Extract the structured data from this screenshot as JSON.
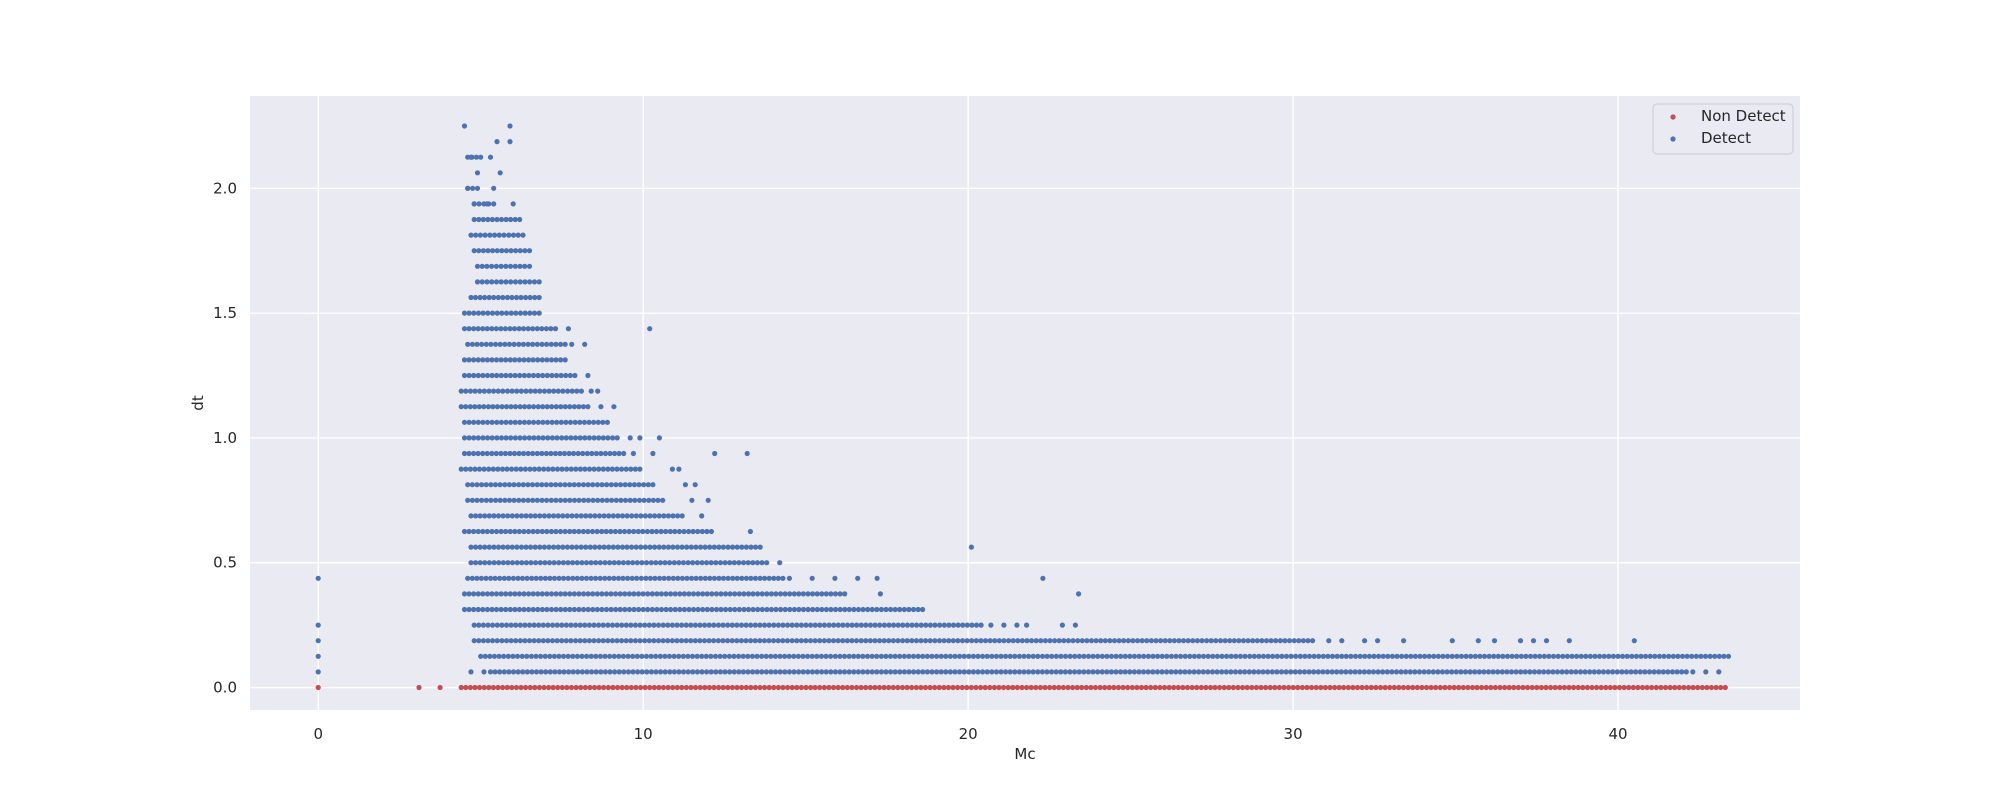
{
  "chart_data": {
    "type": "scatter",
    "title": "",
    "xlabel": "Mc",
    "ylabel": "dt",
    "xlim": [
      -2.1,
      45.6
    ],
    "ylim": [
      -0.09,
      2.37
    ],
    "x_ticks": [
      0,
      10,
      20,
      30,
      40
    ],
    "y_ticks": [
      0.0,
      0.5,
      1.0,
      1.5,
      2.0
    ],
    "x_tick_labels": [
      "0",
      "10",
      "20",
      "30",
      "40"
    ],
    "y_tick_labels": [
      "0.0",
      "0.5",
      "1.0",
      "1.5",
      "2.0"
    ],
    "grid": true,
    "legend_position": "top-right",
    "dt_step": 0.0625,
    "series": [
      {
        "name": "Non Detect",
        "color": "#c44e52",
        "points": [
          [
            0,
            0
          ],
          [
            3.1,
            0
          ],
          [
            3.75,
            0
          ]
        ],
        "bands": [
          {
            "y": 0,
            "x_from": 4.4,
            "x_to": 43.3
          }
        ]
      },
      {
        "name": "Detect",
        "color": "#4c72b0",
        "points": [
          [
            0,
            0.0625
          ],
          [
            0,
            0.125
          ],
          [
            0,
            0.1875
          ],
          [
            0,
            0.25
          ],
          [
            0,
            0.4375
          ],
          [
            10.2,
            1.4375
          ],
          [
            20.1,
            0.5625
          ],
          [
            22.3,
            0.4375
          ],
          [
            23.4,
            0.375
          ],
          [
            22.9,
            0.25
          ],
          [
            23.3,
            0.25
          ],
          [
            12.2,
            0.9375
          ],
          [
            13.2,
            0.9375
          ],
          [
            11.5,
            0.75
          ],
          [
            12.0,
            0.75
          ],
          [
            11.8,
            0.6875
          ],
          [
            13.3,
            0.625
          ],
          [
            10.5,
            1.0
          ],
          [
            9.9,
            1.0
          ],
          [
            9.6,
            1.0
          ],
          [
            9.7,
            0.9375
          ],
          [
            10.3,
            0.9375
          ],
          [
            10.9,
            0.875
          ],
          [
            11.1,
            0.875
          ],
          [
            11.3,
            0.8125
          ],
          [
            11.6,
            0.8125
          ],
          [
            14.2,
            0.5
          ],
          [
            14.5,
            0.4375
          ],
          [
            15.2,
            0.4375
          ],
          [
            15.9,
            0.4375
          ],
          [
            16.6,
            0.4375
          ],
          [
            17.2,
            0.4375
          ],
          [
            17.3,
            0.375
          ],
          [
            8.7,
            1.125
          ],
          [
            9.1,
            1.125
          ],
          [
            8.4,
            1.1875
          ],
          [
            8.6,
            1.1875
          ],
          [
            8.3,
            1.25
          ],
          [
            7.8,
            1.375
          ],
          [
            8.2,
            1.375
          ],
          [
            7.7,
            1.4375
          ],
          [
            4.5,
            2.25
          ],
          [
            5.9,
            2.25
          ],
          [
            5.5,
            2.1875
          ],
          [
            5.9,
            2.1875
          ],
          [
            4.7,
            2.125
          ],
          [
            5.3,
            2.125
          ],
          [
            4.9,
            2.0625
          ],
          [
            5.6,
            2.0625
          ],
          [
            4.6,
            2.0
          ],
          [
            5.4,
            2.0
          ],
          [
            4.8,
            1.9375
          ],
          [
            5.2,
            1.9375
          ],
          [
            6.0,
            1.9375
          ],
          [
            20.7,
            0.25
          ],
          [
            21.1,
            0.25
          ],
          [
            21.5,
            0.25
          ],
          [
            21.8,
            0.25
          ],
          [
            31.1,
            0.1875
          ],
          [
            31.5,
            0.1875
          ],
          [
            32.2,
            0.1875
          ],
          [
            32.6,
            0.1875
          ],
          [
            33.4,
            0.1875
          ],
          [
            34.9,
            0.1875
          ],
          [
            35.7,
            0.1875
          ],
          [
            36.2,
            0.1875
          ],
          [
            37.0,
            0.1875
          ],
          [
            37.4,
            0.1875
          ],
          [
            37.8,
            0.1875
          ],
          [
            38.5,
            0.1875
          ],
          [
            40.5,
            0.1875
          ],
          [
            42.3,
            0.0625
          ],
          [
            42.7,
            0.0625
          ],
          [
            43.1,
            0.0625
          ],
          [
            4.7,
            0.0625
          ],
          [
            5.1,
            0.0625
          ]
        ],
        "bands": [
          {
            "y": 2.125,
            "x_from": 4.6,
            "x_to": 5.0
          },
          {
            "y": 2.0,
            "x_from": 4.6,
            "x_to": 4.9
          },
          {
            "y": 1.9375,
            "x_from": 4.8,
            "x_to": 5.4
          },
          {
            "y": 1.875,
            "x_from": 4.8,
            "x_to": 6.2
          },
          {
            "y": 1.8125,
            "x_from": 4.7,
            "x_to": 6.3
          },
          {
            "y": 1.75,
            "x_from": 4.8,
            "x_to": 6.5
          },
          {
            "y": 1.6875,
            "x_from": 4.9,
            "x_to": 6.5
          },
          {
            "y": 1.625,
            "x_from": 4.9,
            "x_to": 6.8
          },
          {
            "y": 1.5625,
            "x_from": 4.7,
            "x_to": 6.8
          },
          {
            "y": 1.5,
            "x_from": 4.5,
            "x_to": 6.8
          },
          {
            "y": 1.4375,
            "x_from": 4.5,
            "x_to": 7.3
          },
          {
            "y": 1.375,
            "x_from": 4.6,
            "x_to": 7.6
          },
          {
            "y": 1.3125,
            "x_from": 4.5,
            "x_to": 7.6
          },
          {
            "y": 1.25,
            "x_from": 4.5,
            "x_to": 7.9
          },
          {
            "y": 1.1875,
            "x_from": 4.4,
            "x_to": 8.1
          },
          {
            "y": 1.125,
            "x_from": 4.4,
            "x_to": 8.3
          },
          {
            "y": 1.0625,
            "x_from": 4.5,
            "x_to": 8.9
          },
          {
            "y": 1.0,
            "x_from": 4.5,
            "x_to": 9.2
          },
          {
            "y": 0.9375,
            "x_from": 4.5,
            "x_to": 9.4
          },
          {
            "y": 0.875,
            "x_from": 4.4,
            "x_to": 9.9
          },
          {
            "y": 0.8125,
            "x_from": 4.6,
            "x_to": 10.3
          },
          {
            "y": 0.75,
            "x_from": 4.6,
            "x_to": 10.6
          },
          {
            "y": 0.6875,
            "x_from": 4.7,
            "x_to": 11.2
          },
          {
            "y": 0.625,
            "x_from": 4.5,
            "x_to": 12.1
          },
          {
            "y": 0.5625,
            "x_from": 4.7,
            "x_to": 13.6
          },
          {
            "y": 0.5,
            "x_from": 4.7,
            "x_to": 13.8
          },
          {
            "y": 0.4375,
            "x_from": 4.6,
            "x_to": 14.3
          },
          {
            "y": 0.375,
            "x_from": 4.5,
            "x_to": 16.2
          },
          {
            "y": 0.3125,
            "x_from": 4.5,
            "x_to": 18.6
          },
          {
            "y": 0.25,
            "x_from": 4.8,
            "x_to": 20.4
          },
          {
            "y": 0.1875,
            "x_from": 4.8,
            "x_to": 30.6
          },
          {
            "y": 0.125,
            "x_from": 5.0,
            "x_to": 43.4
          },
          {
            "y": 0.0625,
            "x_from": 5.3,
            "x_to": 42.1
          }
        ]
      }
    ]
  }
}
